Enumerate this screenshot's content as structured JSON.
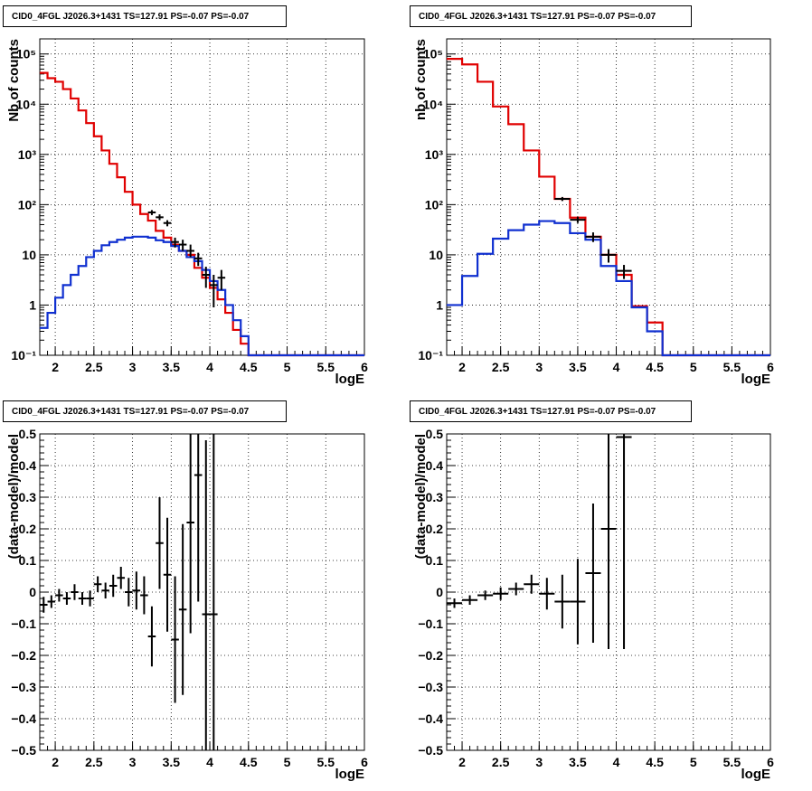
{
  "chart_data": [
    {
      "type": "line",
      "title": "CID0_4FGL J2026.3+1431 TS=127.91 PS=-0.07 PS=-0.07",
      "xlabel": "logE",
      "ylabel": "Nb of counts",
      "xlim": [
        1.8,
        6.0
      ],
      "ylim": [
        0.1,
        200000
      ],
      "yscale": "log",
      "grid": true,
      "x_ticks": [
        "2",
        "2.5",
        "3",
        "3.5",
        "4",
        "4.5",
        "5",
        "5.5",
        "6"
      ],
      "y_ticks": [
        "10⁻¹",
        "1",
        "10",
        "10²",
        "10³",
        "10⁴",
        "10⁵"
      ],
      "bin_edges": [
        1.8,
        1.9,
        2.0,
        2.1,
        2.2,
        2.3,
        2.4,
        2.5,
        2.6,
        2.7,
        2.8,
        2.9,
        3.0,
        3.1,
        3.2,
        3.3,
        3.4,
        3.5,
        3.6,
        3.7,
        3.8,
        3.9,
        4.0,
        4.1,
        4.2,
        4.3,
        4.4,
        4.5,
        4.6,
        4.7,
        4.8,
        4.9,
        5.0,
        5.1,
        5.2,
        5.3,
        5.4,
        5.5,
        5.6,
        5.7,
        5.8,
        5.9,
        6.0
      ],
      "series": [
        {
          "color": "#e00000",
          "values": [
            42000,
            33000,
            28000,
            20000,
            13000,
            7500,
            4200,
            2300,
            1200,
            650,
            350,
            180,
            100,
            65,
            48,
            30,
            22,
            16,
            12,
            10,
            5.5,
            3.5,
            2.2,
            1.3,
            0.7,
            0.32,
            0.17,
            0.1,
            0.1,
            0.1,
            0.1,
            0.1,
            0.1,
            0.1,
            0.1,
            0.1,
            0.1,
            0.1,
            0.1,
            0.1,
            0.1,
            0.1
          ]
        },
        {
          "color": "#1030d0",
          "values": [
            0.35,
            0.7,
            1.4,
            2.5,
            4,
            6,
            9,
            12,
            15.5,
            18,
            20,
            22,
            23,
            23,
            22,
            19.5,
            18,
            15,
            12,
            9,
            7.5,
            5,
            3,
            2,
            1,
            0.5,
            0.24,
            0.1,
            0.1,
            0.1,
            0.1,
            0.1,
            0.1,
            0.1,
            0.1,
            0.1,
            0.1,
            0.1,
            0.1,
            0.1,
            0.1,
            0.1
          ]
        }
      ],
      "data_points": [
        {
          "x": 3.25,
          "y": 70,
          "ylo": 62,
          "yhi": 78
        },
        {
          "x": 3.35,
          "y": 56,
          "ylo": 49,
          "yhi": 64
        },
        {
          "x": 3.45,
          "y": 43,
          "ylo": 37,
          "yhi": 49
        },
        {
          "x": 3.55,
          "y": 18,
          "ylo": 14,
          "yhi": 22
        },
        {
          "x": 3.65,
          "y": 16,
          "ylo": 12,
          "yhi": 20
        },
        {
          "x": 3.75,
          "y": 12,
          "ylo": 9,
          "yhi": 16
        },
        {
          "x": 3.85,
          "y": 8.5,
          "ylo": 6,
          "yhi": 11
        },
        {
          "x": 3.95,
          "y": 4,
          "ylo": 2.2,
          "yhi": 5.8
        },
        {
          "x": 4.05,
          "y": 2.5,
          "ylo": 0.9,
          "yhi": 4
        },
        {
          "x": 4.15,
          "y": 3.5,
          "ylo": 2,
          "yhi": 5
        }
      ]
    },
    {
      "type": "line",
      "title": "CID0_4FGL J2026.3+1431 TS=127.91 PS=-0.07 PS=-0.07",
      "xlabel": "logE",
      "ylabel": "nb of counts",
      "xlim": [
        1.8,
        6.0
      ],
      "ylim": [
        0.1,
        200000
      ],
      "yscale": "log",
      "grid": true,
      "x_ticks": [
        "2",
        "2.5",
        "3",
        "3.5",
        "4",
        "4.5",
        "5",
        "5.5",
        "6"
      ],
      "y_ticks": [
        "10⁻¹",
        "1",
        "10",
        "10²",
        "10³",
        "10⁴",
        "10⁵"
      ],
      "bin_edges": [
        1.8,
        2.0,
        2.2,
        2.4,
        2.6,
        2.8,
        3.0,
        3.2,
        3.4,
        3.6,
        3.8,
        4.0,
        4.2,
        4.4,
        4.6,
        4.8,
        5.0,
        5.2,
        5.4,
        5.6,
        5.8,
        6.0
      ],
      "series": [
        {
          "color": "#e00000",
          "values": [
            80000,
            62000,
            28000,
            9000,
            4000,
            1200,
            360,
            130,
            55,
            23,
            10,
            4,
            0.95,
            0.45,
            0.1,
            0.1,
            0.1,
            0.1,
            0.1,
            0.1,
            0.1
          ]
        },
        {
          "color": "#1030d0",
          "values": [
            1.0,
            3.8,
            10.5,
            21,
            31,
            40,
            47,
            43,
            27,
            20,
            6,
            3,
            0.9,
            0.3,
            0.1,
            0.1,
            0.1,
            0.1,
            0.1,
            0.1,
            0.1
          ]
        }
      ],
      "data_points": [
        {
          "x": 3.3,
          "y": 130,
          "ylo": 118,
          "yhi": 142
        },
        {
          "x": 3.5,
          "y": 50,
          "ylo": 43,
          "yhi": 57
        },
        {
          "x": 3.7,
          "y": 23,
          "ylo": 18,
          "yhi": 28
        },
        {
          "x": 3.9,
          "y": 10,
          "ylo": 7,
          "yhi": 13
        },
        {
          "x": 4.1,
          "y": 4.8,
          "ylo": 3.3,
          "yhi": 6.3
        }
      ]
    },
    {
      "type": "scatter",
      "title": "CID0_4FGL J2026.3+1431 TS=127.91 PS=-0.07 PS=-0.07",
      "xlabel": "logE",
      "ylabel": "(data-model)/model",
      "xlim": [
        1.8,
        6.0
      ],
      "ylim": [
        -0.5,
        0.5
      ],
      "grid": true,
      "x_ticks": [
        "2",
        "2.5",
        "3",
        "3.5",
        "4",
        "4.5",
        "5",
        "5.5",
        "6"
      ],
      "y_ticks": [
        "−0.5",
        "−0.4",
        "−0.3",
        "−0.2",
        "−0.1",
        "0",
        "0.1",
        "0.2",
        "0.3",
        "0.4",
        "0.5"
      ],
      "xerr": 0.05,
      "points": [
        {
          "x": 1.85,
          "y": -0.04,
          "err": 0.025
        },
        {
          "x": 1.95,
          "y": -0.03,
          "err": 0.02
        },
        {
          "x": 2.05,
          "y": -0.01,
          "err": 0.02
        },
        {
          "x": 2.15,
          "y": -0.02,
          "err": 0.02
        },
        {
          "x": 2.25,
          "y": 0.0,
          "err": 0.025
        },
        {
          "x": 2.35,
          "y": -0.02,
          "err": 0.02
        },
        {
          "x": 2.45,
          "y": -0.02,
          "err": 0.025
        },
        {
          "x": 2.55,
          "y": 0.025,
          "err": 0.025
        },
        {
          "x": 2.65,
          "y": 0.005,
          "err": 0.025
        },
        {
          "x": 2.75,
          "y": 0.02,
          "err": 0.035
        },
        {
          "x": 2.85,
          "y": 0.045,
          "err": 0.035
        },
        {
          "x": 2.95,
          "y": 0.0,
          "err": 0.045
        },
        {
          "x": 3.05,
          "y": 0.005,
          "err": 0.06
        },
        {
          "x": 3.15,
          "y": -0.01,
          "err": 0.06
        },
        {
          "x": 3.25,
          "y": -0.14,
          "err": 0.095
        },
        {
          "x": 3.35,
          "y": 0.155,
          "err": 0.145
        },
        {
          "x": 3.45,
          "y": 0.055,
          "err": 0.18
        },
        {
          "x": 3.55,
          "y": -0.15,
          "err": 0.2
        },
        {
          "x": 3.65,
          "y": -0.055,
          "err": 0.27
        },
        {
          "x": 3.75,
          "y": 0.22,
          "err": 0.35
        },
        {
          "x": 3.85,
          "y": 0.37,
          "err": 0.4
        },
        {
          "x": 3.95,
          "y": -0.07,
          "err": 0.55
        },
        {
          "x": 4.05,
          "y": -0.07,
          "err": 0.6
        }
      ]
    },
    {
      "type": "scatter",
      "title": "CID0_4FGL J2026.3+1431 TS=127.91 PS=-0.07 PS=-0.07",
      "xlabel": "logE",
      "ylabel": "(data-model)/model",
      "xlim": [
        1.8,
        6.0
      ],
      "ylim": [
        -0.5,
        0.5
      ],
      "grid": true,
      "x_ticks": [
        "2",
        "2.5",
        "3",
        "3.5",
        "4",
        "4.5",
        "5",
        "5.5",
        "6"
      ],
      "y_ticks": [
        "−0.5",
        "−0.4",
        "−0.3",
        "−0.2",
        "−0.1",
        "0",
        "0.1",
        "0.2",
        "0.3",
        "0.4",
        "0.5"
      ],
      "xerr": 0.1,
      "points": [
        {
          "x": 1.9,
          "y": -0.035,
          "err": 0.015
        },
        {
          "x": 2.1,
          "y": -0.025,
          "err": 0.015
        },
        {
          "x": 2.3,
          "y": -0.01,
          "err": 0.015
        },
        {
          "x": 2.5,
          "y": -0.005,
          "err": 0.02
        },
        {
          "x": 2.7,
          "y": 0.01,
          "err": 0.02
        },
        {
          "x": 2.9,
          "y": 0.025,
          "err": 0.03
        },
        {
          "x": 3.1,
          "y": -0.005,
          "err": 0.05
        },
        {
          "x": 3.3,
          "y": -0.03,
          "err": 0.085
        },
        {
          "x": 3.5,
          "y": -0.03,
          "err": 0.135
        },
        {
          "x": 3.7,
          "y": 0.06,
          "err": 0.22
        },
        {
          "x": 3.9,
          "y": 0.2,
          "err": 0.38
        },
        {
          "x": 4.1,
          "y": 0.49,
          "err": 0.67
        }
      ]
    }
  ]
}
